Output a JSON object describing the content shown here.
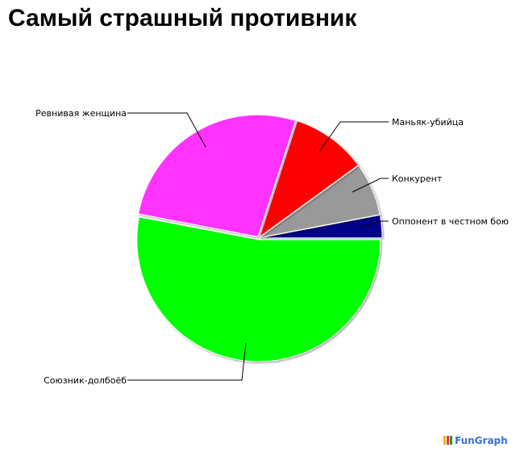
{
  "chart_data": {
    "type": "pie",
    "title": "Самый страшный противник",
    "slices": [
      {
        "label": "Оппонент в честном бою",
        "value": 3,
        "color": "#00008b"
      },
      {
        "label": "Конкурент",
        "value": 7,
        "color": "#999999"
      },
      {
        "label": "Маньяк-убийца",
        "value": 10,
        "color": "#ff0000"
      },
      {
        "label": "Ревнивая женщина",
        "value": 27,
        "color": "#ff33ff"
      },
      {
        "label": "Союзник-долбоёб",
        "value": 53,
        "color": "#00ff00"
      }
    ],
    "start_angle_deg": 0,
    "direction": "counterclockwise",
    "legend": "none"
  },
  "watermark": "FunGraph"
}
